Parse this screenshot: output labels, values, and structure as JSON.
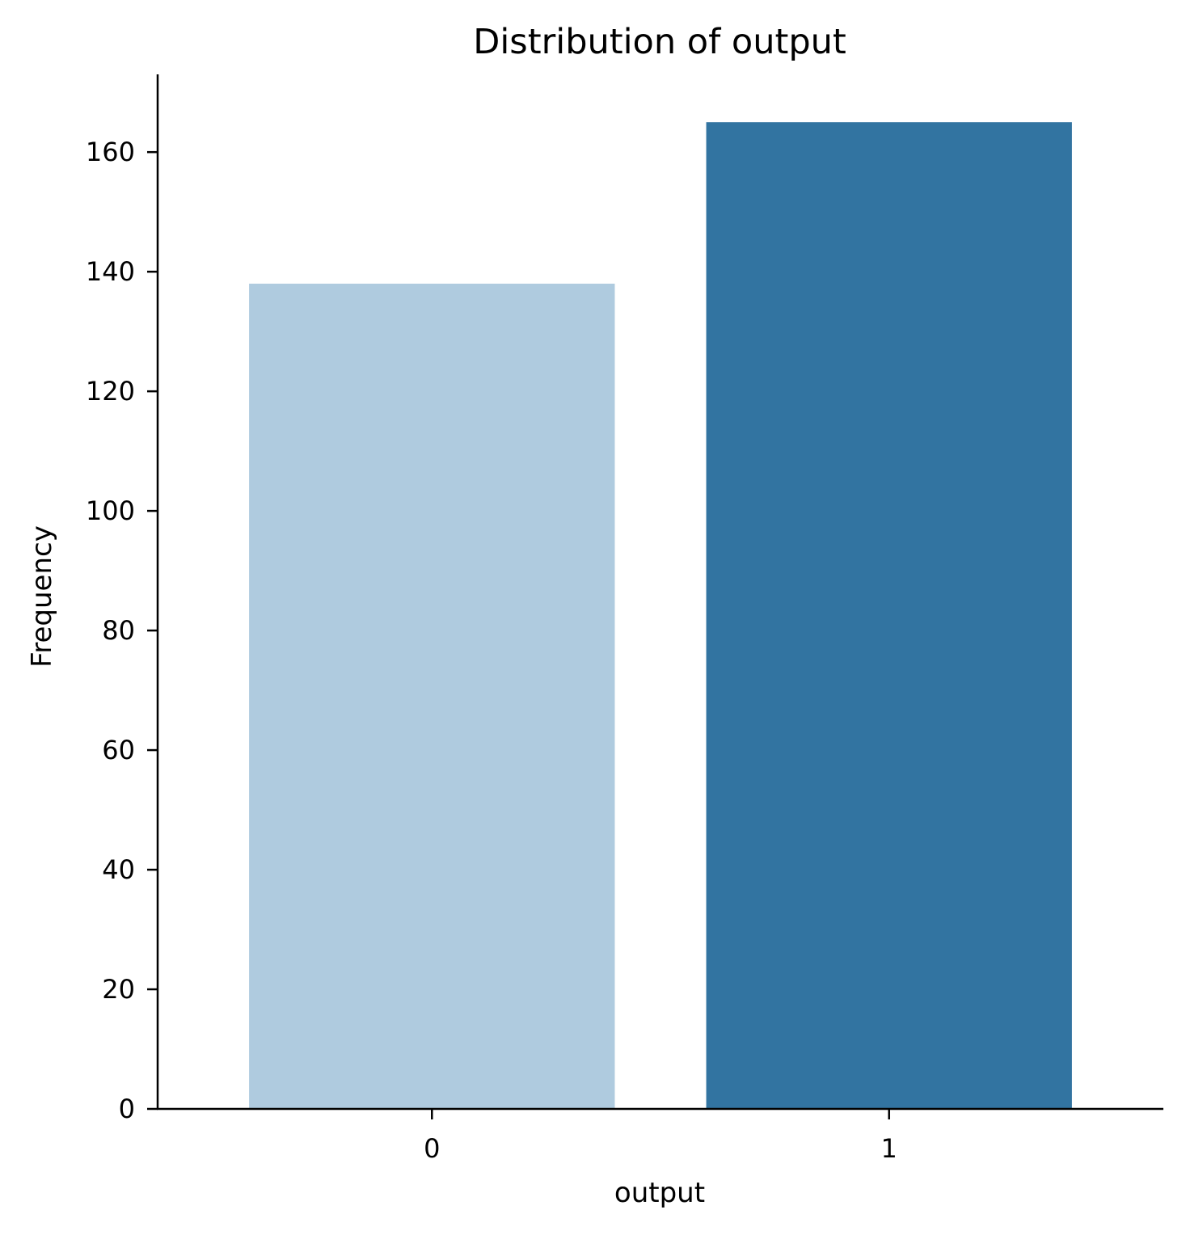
{
  "chart_data": {
    "type": "bar",
    "title": "Distribution of output",
    "xlabel": "output",
    "ylabel": "Frequency",
    "categories": [
      "0",
      "1"
    ],
    "values": [
      138,
      165
    ],
    "colors": [
      "#afcbdf",
      "#3274a1"
    ],
    "ylim": [
      0,
      173
    ],
    "yticks": [
      0,
      20,
      40,
      60,
      80,
      100,
      120,
      140,
      160
    ],
    "grid": false,
    "legend": "none"
  }
}
